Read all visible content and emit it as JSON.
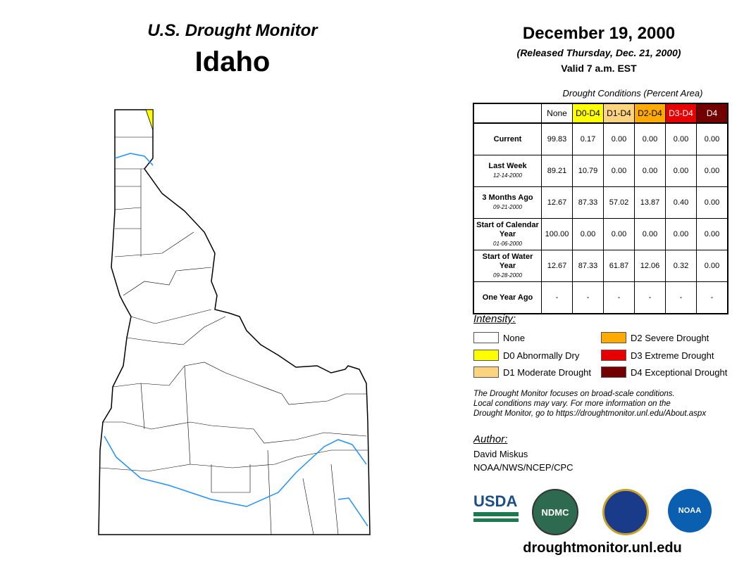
{
  "header": {
    "title": "U.S. Drought Monitor",
    "state": "Idaho",
    "date": "December 19, 2000",
    "released": "(Released Thursday, Dec. 21, 2000)",
    "valid": "Valid 7 a.m. EST"
  },
  "table": {
    "caption": "Drought Conditions (Percent Area)",
    "columns": [
      "None",
      "D0-D4",
      "D1-D4",
      "D2-D4",
      "D3-D4",
      "D4"
    ],
    "column_colors": [
      "#ffffff",
      "#ffff00",
      "#fcd37f",
      "#ffaa00",
      "#e60000",
      "#730000"
    ],
    "rows": [
      {
        "label": "Current",
        "sub": "",
        "values": [
          "99.83",
          "0.17",
          "0.00",
          "0.00",
          "0.00",
          "0.00"
        ]
      },
      {
        "label": "Last Week",
        "sub": "12-14-2000",
        "values": [
          "89.21",
          "10.79",
          "0.00",
          "0.00",
          "0.00",
          "0.00"
        ]
      },
      {
        "label": "3 Months Ago",
        "sub": "09-21-2000",
        "values": [
          "12.67",
          "87.33",
          "57.02",
          "13.87",
          "0.40",
          "0.00"
        ]
      },
      {
        "label": "Start of Calendar Year",
        "sub": "01-06-2000",
        "values": [
          "100.00",
          "0.00",
          "0.00",
          "0.00",
          "0.00",
          "0.00"
        ]
      },
      {
        "label": "Start of Water Year",
        "sub": "09-28-2000",
        "values": [
          "12.67",
          "87.33",
          "61.87",
          "12.06",
          "0.32",
          "0.00"
        ]
      },
      {
        "label": "One Year Ago",
        "sub": "",
        "values": [
          "-",
          "-",
          "-",
          "-",
          "-",
          "-"
        ]
      }
    ]
  },
  "legend": {
    "title": "Intensity:",
    "items": [
      {
        "label": "None",
        "color": "#ffffff"
      },
      {
        "label": "D0 Abnormally Dry",
        "color": "#ffff00"
      },
      {
        "label": "D1 Moderate Drought",
        "color": "#fcd37f"
      },
      {
        "label": "D2 Severe Drought",
        "color": "#ffaa00"
      },
      {
        "label": "D3 Extreme Drought",
        "color": "#e60000"
      },
      {
        "label": "D4 Exceptional Drought",
        "color": "#730000"
      }
    ]
  },
  "note": [
    "The Drought Monitor focuses on broad-scale conditions.",
    "Local conditions may vary. For more information on the",
    "Drought Monitor, go to https://droughtmonitor.unl.edu/About.aspx"
  ],
  "author": {
    "heading": "Author:",
    "name": "David Miskus",
    "org": "NOAA/NWS/NCEP/CPC"
  },
  "logos": {
    "usda": "USDA",
    "ndmc": "NDMC",
    "noaa": "NOAA"
  },
  "footer": {
    "url": "droughtmonitor.unl.edu"
  }
}
